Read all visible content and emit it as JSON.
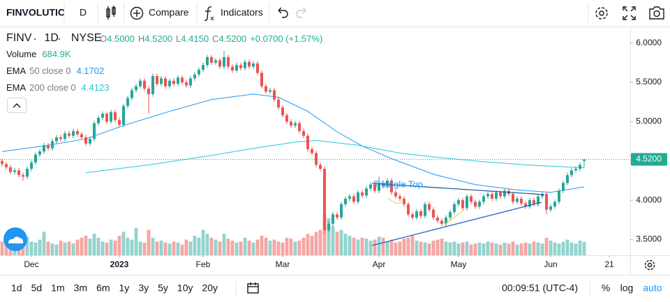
{
  "toolbar": {
    "symbol": "FINVOLUTIC",
    "interval": "D",
    "compare": "Compare",
    "indicators": "Indicators"
  },
  "legend": {
    "symbol": "FINV",
    "interval": "1D",
    "exchange": "NYSE",
    "ohlc": [
      {
        "key": "O",
        "value": "4.5000"
      },
      {
        "key": "H",
        "value": "4.5200"
      },
      {
        "key": "L",
        "value": "4.4150"
      },
      {
        "key": "C",
        "value": "4.5200"
      }
    ],
    "change": "+0.0700 (+1.57%)",
    "studies": [
      {
        "name": "Volume",
        "value": "684.9K"
      },
      {
        "name": "EMA",
        "params": "50 close 0",
        "value": "4.1702"
      },
      {
        "name": "EMA",
        "params": "200 close 0",
        "value": "4.4123"
      }
    ]
  },
  "chart_data": {
    "type": "candlestick",
    "xlim": [
      -0.5,
      150
    ],
    "ylim": [
      3.3,
      6.21
    ],
    "yticks": [
      {
        "value": 6,
        "label": "6.0000"
      },
      {
        "value": 5.5,
        "label": "5.5000"
      },
      {
        "value": 5,
        "label": "5.0000"
      },
      {
        "value": 4.5,
        "label": "4.5000"
      },
      {
        "value": 4,
        "label": "4.0000"
      },
      {
        "value": 3.5,
        "label": "3.5000"
      }
    ],
    "xticks": [
      {
        "value": 7,
        "label": "Dec"
      },
      {
        "value": 28,
        "label": "2023"
      },
      {
        "value": 48,
        "label": "Feb"
      },
      {
        "value": 67,
        "label": "Mar"
      },
      {
        "value": 90,
        "label": "Apr"
      },
      {
        "value": 109,
        "label": "May"
      },
      {
        "value": 131,
        "label": "Jun"
      },
      {
        "value": 145,
        "label": "21"
      }
    ],
    "grid": false,
    "up_color": "#26a69a",
    "down_color": "#ef5350",
    "volume_up_color": "#93d3cd",
    "volume_down_color": "#f5a6a4",
    "volume_lim": [
      0,
      2500000
    ],
    "last_price": {
      "value": 4.52,
      "label": "4.5200"
    },
    "last_price_color": "#22ab94",
    "open": [
      4.5,
      4.46,
      4.42,
      4.36,
      4.38,
      4.32,
      4.3,
      4.4,
      4.48,
      4.58,
      4.62,
      4.7,
      4.66,
      4.75,
      4.8,
      4.78,
      4.85,
      4.82,
      4.88,
      4.84,
      4.8,
      4.72,
      4.78,
      4.98,
      5.05,
      5.1,
      5.0,
      5.12,
      5.02,
      4.96,
      5.2,
      5.3,
      5.4,
      5.45,
      5.52,
      5.42,
      5.35,
      5.58,
      5.48,
      5.55,
      5.45,
      5.52,
      5.48,
      5.56,
      5.5,
      5.46,
      5.55,
      5.6,
      5.66,
      5.72,
      5.82,
      5.75,
      5.78,
      5.7,
      5.82,
      5.7,
      5.65,
      5.72,
      5.68,
      5.76,
      5.7,
      5.74,
      5.62,
      5.45,
      5.38,
      5.4,
      5.28,
      5.18,
      5.08,
      5.0,
      4.95,
      4.98,
      4.88,
      4.82,
      4.65,
      4.6,
      4.45,
      4.4,
      3.62,
      3.7,
      3.82,
      3.78,
      3.95,
      4.02,
      4.05,
      3.98,
      4.1,
      4.06,
      4.15,
      4.2,
      4.12,
      4.22,
      4.18,
      4.25,
      4.1,
      4.05,
      4.02,
      3.95,
      3.82,
      3.78,
      3.86,
      3.8,
      3.95,
      3.88,
      3.78,
      3.74,
      3.7,
      3.78,
      3.85,
      3.95,
      4.0,
      3.9,
      4.05,
      3.98,
      3.92,
      3.98,
      4.05,
      4.08,
      4.02,
      4.1,
      4.05,
      4.12,
      4.08,
      3.98,
      4.02,
      3.96,
      3.92,
      4.0,
      3.95,
      4.05,
      4.08,
      3.88,
      3.92,
      3.98,
      4.12,
      4.22,
      4.32,
      4.38,
      4.4,
      4.5
    ],
    "high": [
      4.53,
      4.49,
      4.45,
      4.41,
      4.41,
      4.35,
      4.43,
      4.51,
      4.61,
      4.65,
      4.73,
      4.73,
      4.78,
      4.83,
      4.83,
      4.88,
      4.88,
      4.91,
      4.91,
      4.87,
      4.83,
      4.81,
      5.01,
      5.08,
      5.13,
      5.13,
      5.15,
      5.15,
      5.05,
      5.23,
      5.33,
      5.43,
      5.48,
      5.55,
      5.55,
      5.45,
      5.61,
      5.61,
      5.58,
      5.58,
      5.55,
      5.55,
      5.59,
      5.59,
      5.53,
      5.58,
      5.63,
      5.69,
      5.75,
      5.85,
      5.85,
      5.81,
      5.81,
      5.9,
      5.85,
      5.73,
      5.75,
      5.75,
      5.79,
      5.79,
      5.77,
      5.77,
      5.65,
      5.48,
      5.43,
      5.43,
      5.31,
      5.21,
      5.11,
      5.03,
      5.01,
      5.01,
      4.91,
      4.85,
      4.68,
      4.63,
      4.48,
      4.43,
      3.73,
      3.85,
      3.85,
      3.98,
      4.05,
      4.08,
      4.08,
      4.13,
      4.13,
      4.18,
      4.23,
      4.23,
      4.3,
      4.25,
      4.28,
      4.28,
      4.13,
      4.08,
      4.05,
      3.98,
      3.85,
      3.89,
      3.89,
      3.98,
      3.98,
      3.91,
      3.81,
      3.77,
      3.81,
      3.88,
      3.98,
      4.03,
      4.03,
      4.08,
      4.08,
      4.01,
      4.01,
      4.08,
      4.11,
      4.11,
      4.13,
      4.13,
      4.15,
      4.15,
      4.11,
      4.05,
      4.05,
      3.99,
      4.03,
      4.03,
      4.08,
      4.11,
      4.11,
      3.95,
      4.01,
      4.15,
      4.25,
      4.35,
      4.41,
      4.43,
      4.48,
      4.52
    ],
    "low": [
      4.43,
      4.39,
      4.33,
      4.33,
      4.29,
      4.25,
      4.27,
      4.37,
      4.45,
      4.55,
      4.59,
      4.63,
      4.63,
      4.72,
      4.75,
      4.75,
      4.79,
      4.79,
      4.81,
      4.77,
      4.69,
      4.69,
      4.75,
      4.95,
      5.02,
      4.97,
      4.97,
      4.99,
      4.93,
      4.93,
      5.17,
      5.27,
      5.37,
      5.42,
      5.39,
      5.1,
      5.32,
      5.45,
      5.45,
      5.42,
      5.42,
      5.45,
      5.45,
      5.47,
      5.43,
      5.43,
      5.52,
      5.57,
      5.63,
      5.69,
      5.72,
      5.72,
      5.67,
      5.67,
      5.67,
      5.62,
      5.62,
      5.65,
      5.65,
      5.67,
      5.67,
      5.59,
      5.42,
      5.35,
      5.35,
      5.25,
      5.15,
      5.05,
      4.97,
      4.92,
      4.92,
      4.85,
      4.79,
      4.62,
      4.57,
      4.42,
      4.37,
      3.57,
      3.59,
      3.67,
      3.75,
      3.75,
      3.92,
      3.99,
      3.95,
      3.95,
      4.03,
      4.03,
      4.12,
      4.09,
      4.09,
      4.15,
      4.15,
      4.07,
      4.02,
      3.99,
      3.92,
      3.79,
      3.75,
      3.75,
      3.77,
      3.77,
      3.85,
      3.75,
      3.71,
      3.67,
      3.67,
      3.75,
      3.82,
      3.92,
      3.87,
      3.87,
      3.95,
      3.89,
      3.89,
      3.95,
      4.02,
      3.99,
      3.99,
      4.02,
      4.02,
      4.05,
      3.95,
      3.95,
      3.93,
      3.89,
      3.89,
      3.92,
      3.92,
      4.02,
      3.82,
      3.85,
      3.89,
      3.95,
      4.09,
      4.19,
      4.29,
      4.35,
      4.37,
      4.415
    ],
    "close": [
      4.46,
      4.42,
      4.36,
      4.38,
      4.32,
      4.3,
      4.4,
      4.48,
      4.58,
      4.62,
      4.7,
      4.66,
      4.75,
      4.8,
      4.78,
      4.85,
      4.82,
      4.88,
      4.84,
      4.8,
      4.72,
      4.78,
      4.98,
      5.05,
      5.1,
      5.0,
      5.12,
      5.02,
      4.96,
      5.2,
      5.3,
      5.4,
      5.45,
      5.52,
      5.42,
      5.35,
      5.58,
      5.48,
      5.55,
      5.45,
      5.52,
      5.48,
      5.56,
      5.5,
      5.46,
      5.55,
      5.6,
      5.66,
      5.72,
      5.82,
      5.75,
      5.78,
      5.7,
      5.82,
      5.7,
      5.65,
      5.72,
      5.68,
      5.76,
      5.7,
      5.74,
      5.62,
      5.45,
      5.38,
      5.4,
      5.28,
      5.18,
      5.08,
      5.0,
      4.95,
      4.98,
      4.88,
      4.82,
      4.65,
      4.6,
      4.45,
      4.4,
      3.62,
      3.7,
      3.82,
      3.78,
      3.95,
      4.02,
      4.05,
      3.98,
      4.1,
      4.06,
      4.15,
      4.2,
      4.12,
      4.22,
      4.18,
      4.25,
      4.1,
      4.05,
      4.02,
      3.95,
      3.82,
      3.78,
      3.86,
      3.8,
      3.95,
      3.88,
      3.78,
      3.74,
      3.7,
      3.78,
      3.85,
      3.95,
      4.0,
      3.9,
      4.05,
      3.98,
      3.92,
      3.98,
      4.05,
      4.08,
      4.02,
      4.1,
      4.05,
      4.12,
      4.08,
      3.98,
      4.02,
      3.96,
      3.92,
      4.0,
      3.95,
      4.05,
      4.08,
      3.88,
      3.92,
      3.98,
      4.12,
      4.22,
      4.32,
      4.38,
      4.4,
      4.45,
      4.52
    ],
    "volume": [
      700000,
      650000,
      800000,
      600000,
      900000,
      1100000,
      950000,
      700000,
      650000,
      800000,
      1200000,
      700000,
      600000,
      550000,
      750000,
      650000,
      700000,
      600000,
      800000,
      900000,
      1000000,
      850000,
      1100000,
      900000,
      700000,
      650000,
      800000,
      750000,
      1000000,
      1200000,
      900000,
      800000,
      1400000,
      700000,
      650000,
      1300000,
      900000,
      700000,
      750000,
      650000,
      600000,
      700000,
      650000,
      550000,
      800000,
      700000,
      1000000,
      900000,
      1300000,
      1100000,
      900000,
      800000,
      700000,
      1100000,
      850000,
      750000,
      650000,
      700000,
      900000,
      750000,
      650000,
      800000,
      1000000,
      900000,
      750000,
      800000,
      700000,
      650000,
      900000,
      850000,
      700000,
      750000,
      900000,
      1100000,
      1000000,
      1200000,
      1300000,
      2100000,
      1900000,
      1500000,
      1200000,
      1300000,
      1100000,
      1000000,
      900000,
      800000,
      900000,
      850000,
      750000,
      800000,
      950000,
      900000,
      700000,
      800000,
      650000,
      700000,
      850000,
      900000,
      1000000,
      750000,
      700000,
      650000,
      600000,
      750000,
      800000,
      850000,
      700000,
      650000,
      700000,
      600000,
      650000,
      700000,
      550000,
      600000,
      650000,
      600000,
      700000,
      650000,
      600000,
      550000,
      650000,
      600000,
      700000,
      550000,
      600000,
      650000,
      600000,
      700000,
      650000,
      600000,
      900000,
      750000,
      650000,
      600000,
      700000,
      800000,
      650000,
      600000,
      750000,
      684900
    ],
    "lines": [
      {
        "color": "#2196f3",
        "x": [
          0,
          10,
          20,
          29,
          40,
          50,
          60,
          66,
          73,
          80,
          86,
          93,
          103,
          113,
          123,
          131,
          139
        ],
        "values": [
          4.62,
          4.69,
          4.78,
          4.95,
          5.13,
          5.28,
          5.35,
          5.31,
          5.13,
          4.87,
          4.69,
          4.53,
          4.33,
          4.2,
          4.13,
          4.1,
          4.1702
        ]
      },
      {
        "color": "#26c6da",
        "x": [
          20,
          35,
          50,
          60,
          70,
          75,
          85,
          95,
          105,
          115,
          125,
          139
        ],
        "values": [
          4.35,
          4.45,
          4.57,
          4.66,
          4.74,
          4.76,
          4.7,
          4.6,
          4.54,
          4.49,
          4.45,
          4.4123
        ]
      }
    ],
    "annotations": [
      {
        "text": "Triangle Top"
      }
    ]
  },
  "bottom_bar": {
    "ranges": [
      "1d",
      "5d",
      "1m",
      "3m",
      "6m",
      "1y",
      "3y",
      "5y",
      "10y",
      "20y"
    ],
    "time": "00:09:51 (UTC-4)",
    "percent": "%",
    "log": "log",
    "auto": "auto"
  }
}
